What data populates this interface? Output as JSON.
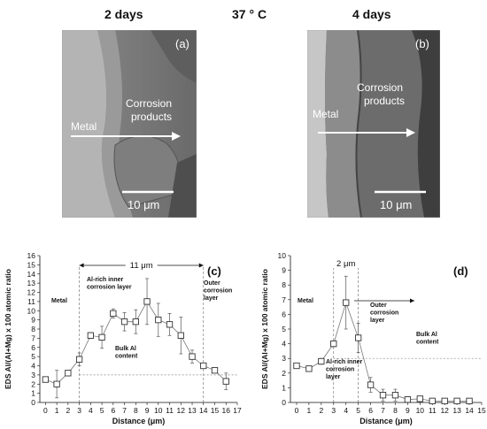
{
  "header": {
    "left": "2 days",
    "center": "37 ° C",
    "right": "4 days"
  },
  "micrographs": [
    {
      "panel": "(a)",
      "metal": "Metal",
      "corrosion": [
        "Corrosion",
        "products"
      ],
      "scale": "10 μm"
    },
    {
      "panel": "(b)",
      "metal": "Metal",
      "corrosion": [
        "Corrosion",
        "products"
      ],
      "scale": "10 μm"
    }
  ],
  "chart_data": [
    {
      "type": "line",
      "panel": "(c)",
      "xlabel": "Distance (μm)",
      "ylabel": "EDS Al/(Al+Mg) x 100 atomic ratio",
      "xlim": [
        -0.5,
        17
      ],
      "ylim": [
        0,
        16
      ],
      "xticks": [
        0,
        1,
        2,
        3,
        4,
        5,
        6,
        7,
        8,
        9,
        10,
        11,
        12,
        13,
        14,
        15,
        16,
        17
      ],
      "yticks": [
        0,
        1,
        2,
        3,
        4,
        5,
        6,
        7,
        8,
        9,
        10,
        11,
        12,
        13,
        14,
        15,
        16
      ],
      "x": [
        0,
        1,
        2,
        3,
        4,
        5,
        6,
        7,
        8,
        9,
        10,
        11,
        12,
        13,
        14,
        15,
        16
      ],
      "y": [
        2.5,
        2.0,
        3.2,
        4.7,
        7.3,
        7.1,
        9.7,
        8.8,
        8.8,
        11.0,
        9.0,
        8.5,
        7.3,
        5.0,
        4.0,
        3.5,
        2.3
      ],
      "err": [
        0.3,
        1.5,
        0.2,
        0.7,
        0.3,
        1.2,
        0.5,
        1.0,
        1.3,
        2.5,
        1.8,
        1.2,
        2.0,
        0.7,
        0.2,
        0.2,
        0.9
      ],
      "bulk_level": 3,
      "bracket": {
        "from": 3,
        "to": 14,
        "label": "11 μm"
      },
      "annotations": {
        "metal": "Metal",
        "inner": [
          "Al-rich inner",
          "corrosion layer"
        ],
        "outer": [
          "Outer",
          "corrosion",
          "layer"
        ],
        "bulk": [
          "Bulk Al",
          "content"
        ]
      }
    },
    {
      "type": "line",
      "panel": "(d)",
      "xlabel": "Distance (μm)",
      "ylabel": "EDS Al/(Al+Mg) x 100 atomic ratio",
      "xlim": [
        -0.5,
        15
      ],
      "ylim": [
        0,
        10
      ],
      "xticks": [
        0,
        1,
        2,
        3,
        4,
        5,
        6,
        7,
        8,
        9,
        10,
        11,
        12,
        13,
        14,
        15
      ],
      "yticks": [
        0,
        1,
        2,
        3,
        4,
        5,
        6,
        7,
        8,
        9,
        10
      ],
      "x": [
        0,
        1,
        2,
        3,
        4,
        5,
        6,
        7,
        8,
        9,
        10,
        11,
        12,
        13,
        14
      ],
      "y": [
        2.5,
        2.3,
        2.8,
        4.0,
        6.8,
        4.4,
        1.2,
        0.5,
        0.5,
        0.2,
        0.25,
        0.1,
        0.1,
        0.1,
        0.1
      ],
      "err": [
        0.05,
        0.05,
        0.2,
        0.2,
        1.8,
        1.0,
        0.5,
        0.4,
        0.4,
        0.2,
        0.15,
        0.1,
        0.1,
        0.1,
        0.1
      ],
      "bulk_level": 3,
      "bracket": {
        "from": 3,
        "to": 5,
        "label": "2 μm"
      },
      "annotations": {
        "metal": "Metal",
        "inner": [
          "Al-rich inner",
          "corrosion",
          "layer"
        ],
        "outer": [
          "Outer",
          "corrosion",
          "layer"
        ],
        "bulk": [
          "Bulk Al",
          "content"
        ]
      }
    }
  ]
}
